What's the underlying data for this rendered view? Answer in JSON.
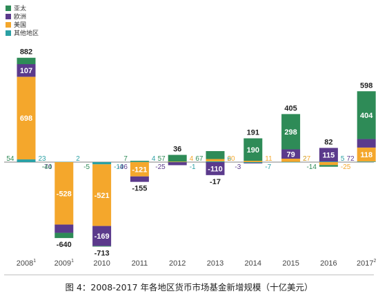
{
  "caption": "图 4：2008-2017 年各地区货币市场基金新增规模（十亿美元）",
  "colors": {
    "asia": "#2e8b57",
    "europe": "#5b3a8c",
    "us": "#f4a72c",
    "other": "#2aa0a4",
    "total_text": "#222222",
    "axis": "#9a9a9a"
  },
  "legend": [
    {
      "key": "asia",
      "label": "亚太"
    },
    {
      "key": "europe",
      "label": "欧洲"
    },
    {
      "key": "us",
      "label": "美国"
    },
    {
      "key": "other",
      "label": "其他地区"
    }
  ],
  "chart_data": {
    "type": "bar",
    "stacked": true,
    "categories": [
      "2008",
      "2009",
      "2010",
      "2011",
      "2012",
      "2013",
      "2014",
      "2015",
      "2016",
      "2017"
    ],
    "category_superscripts": [
      "1",
      "1",
      "",
      "",
      "",
      "",
      "",
      "",
      "",
      "2"
    ],
    "series": [
      {
        "key": "asia",
        "name": "亚太",
        "values": [
          54,
          -44,
          -5,
          7,
          57,
          67,
          190,
          298,
          -14,
          404
        ]
      },
      {
        "key": "europe",
        "name": "欧洲",
        "values": [
          107,
          -70,
          -169,
          -46,
          -25,
          -110,
          -3,
          79,
          115,
          72
        ]
      },
      {
        "key": "us",
        "name": "美国",
        "values": [
          698,
          -528,
          -521,
          -121,
          4,
          20,
          11,
          27,
          -25,
          118
        ]
      },
      {
        "key": "other",
        "name": "其他地区",
        "values": [
          23,
          2,
          -19,
          4,
          -1,
          6,
          -7,
          2,
          5,
          5
        ]
      }
    ],
    "totals": [
      882,
      -640,
      -713,
      -155,
      36,
      -17,
      191,
      405,
      82,
      598
    ],
    "ylim": [
      -730,
      920
    ],
    "title": "",
    "xlabel": "",
    "ylabel": "",
    "grid": false
  }
}
